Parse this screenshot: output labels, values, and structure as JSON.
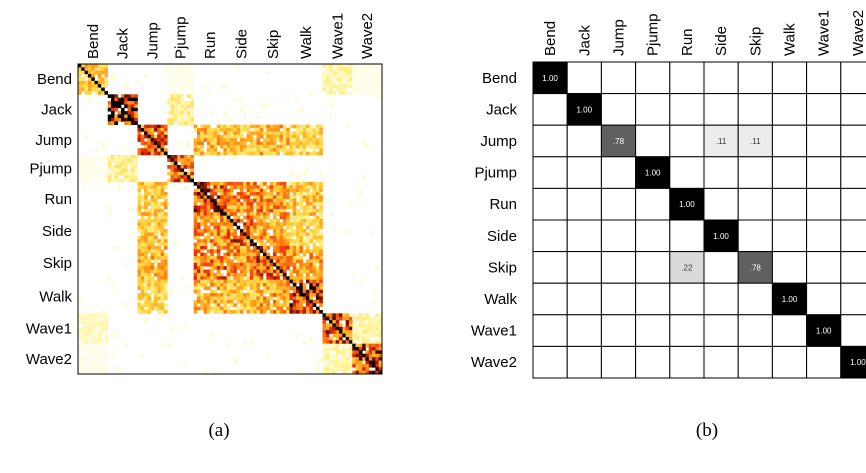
{
  "chart_data": [
    {
      "type": "heatmap",
      "caption": "(a)",
      "title": "",
      "classes": [
        "Bend",
        "Jack",
        "Jump",
        "Pjump",
        "Run",
        "Side",
        "Skip",
        "Walk",
        "Wave1",
        "Wave2"
      ],
      "samples_per_class": [
        9,
        9,
        9,
        8,
        10,
        9,
        10,
        10,
        9,
        9
      ],
      "block_similarity": [
        [
          0.45,
          0.0,
          0.0,
          0.05,
          0.0,
          0.0,
          0.0,
          0.0,
          0.2,
          0.05
        ],
        [
          0.0,
          0.9,
          0.0,
          0.25,
          0.0,
          0.0,
          0.0,
          0.0,
          0.0,
          0.0
        ],
        [
          0.0,
          0.0,
          0.7,
          0.0,
          0.5,
          0.45,
          0.5,
          0.4,
          0.0,
          0.0
        ],
        [
          0.05,
          0.25,
          0.0,
          0.7,
          0.0,
          0.0,
          0.0,
          0.0,
          0.0,
          0.0
        ],
        [
          0.0,
          0.0,
          0.45,
          0.0,
          0.75,
          0.6,
          0.6,
          0.45,
          0.0,
          0.0
        ],
        [
          0.0,
          0.0,
          0.45,
          0.0,
          0.6,
          0.7,
          0.55,
          0.4,
          0.0,
          0.0
        ],
        [
          0.0,
          0.0,
          0.5,
          0.0,
          0.65,
          0.6,
          0.7,
          0.55,
          0.0,
          0.0
        ],
        [
          0.0,
          0.0,
          0.4,
          0.0,
          0.5,
          0.45,
          0.55,
          0.8,
          0.0,
          0.0
        ],
        [
          0.15,
          0.0,
          0.0,
          0.0,
          0.0,
          0.0,
          0.0,
          0.0,
          0.75,
          0.2
        ],
        [
          0.05,
          0.0,
          0.0,
          0.0,
          0.0,
          0.0,
          0.0,
          0.0,
          0.2,
          0.75
        ]
      ],
      "diagonal": "1.00",
      "colormap": [
        "#ffffff",
        "#fff6a0",
        "#ffd23a",
        "#ff8a14",
        "#e8280a",
        "#000000"
      ]
    },
    {
      "type": "table",
      "caption": "(b)",
      "title": "",
      "classes": [
        "Bend",
        "Jack",
        "Jump",
        "Pjump",
        "Run",
        "Side",
        "Skip",
        "Walk",
        "Wave1",
        "Wave2"
      ],
      "matrix": [
        [
          1.0,
          0,
          0,
          0,
          0,
          0,
          0,
          0,
          0,
          0
        ],
        [
          0,
          1.0,
          0,
          0,
          0,
          0,
          0,
          0,
          0,
          0
        ],
        [
          0,
          0,
          0.78,
          0,
          0,
          0.11,
          0.11,
          0,
          0,
          0
        ],
        [
          0,
          0,
          0,
          1.0,
          0,
          0,
          0,
          0,
          0,
          0
        ],
        [
          0,
          0,
          0,
          0,
          1.0,
          0,
          0,
          0,
          0,
          0
        ],
        [
          0,
          0,
          0,
          0,
          0,
          1.0,
          0,
          0,
          0,
          0
        ],
        [
          0,
          0,
          0,
          0,
          0.22,
          0,
          0.78,
          0,
          0,
          0
        ],
        [
          0,
          0,
          0,
          0,
          0,
          0,
          0,
          1.0,
          0,
          0
        ],
        [
          0,
          0,
          0,
          0,
          0,
          0,
          0,
          0,
          1.0,
          0
        ],
        [
          0,
          0,
          0,
          0,
          0,
          0,
          0,
          0,
          0,
          1.0
        ]
      ],
      "labels": [
        [
          "1.00",
          "",
          "",
          "",
          "",
          "",
          "",
          "",
          "",
          ""
        ],
        [
          "",
          "1.00",
          "",
          "",
          "",
          "",
          "",
          "",
          "",
          ""
        ],
        [
          "",
          "",
          ".78",
          "",
          "",
          ".11",
          ".11",
          "",
          "",
          ""
        ],
        [
          "",
          "",
          "",
          "1.00",
          "",
          "",
          "",
          "",
          "",
          ""
        ],
        [
          "",
          "",
          "",
          "",
          "1.00",
          "",
          "",
          "",
          "",
          ""
        ],
        [
          "",
          "",
          "",
          "",
          "",
          "1.00",
          "",
          "",
          "",
          ""
        ],
        [
          "",
          "",
          "",
          "",
          ".22",
          "",
          ".78",
          "",
          "",
          ""
        ],
        [
          "",
          "",
          "",
          "",
          "",
          "",
          "",
          "1.00",
          "",
          ""
        ],
        [
          "",
          "",
          "",
          "",
          "",
          "",
          "",
          "",
          "1.00",
          ""
        ],
        [
          "",
          "",
          "",
          "",
          "",
          "",
          "",
          "",
          "",
          "1.00"
        ]
      ]
    }
  ]
}
